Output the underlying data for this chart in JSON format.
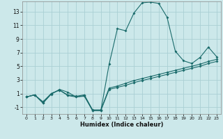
{
  "xlabel": "Humidex (Indice chaleur)",
  "bg_color": "#cce8ea",
  "grid_color": "#aad0d4",
  "line_color": "#1a6b6b",
  "xlim": [
    -0.5,
    23.5
  ],
  "ylim": [
    -2.0,
    14.5
  ],
  "xticks": [
    0,
    1,
    2,
    3,
    4,
    5,
    6,
    7,
    8,
    9,
    10,
    11,
    12,
    13,
    14,
    15,
    16,
    17,
    18,
    19,
    20,
    21,
    22,
    23
  ],
  "yticks": [
    -1,
    1,
    3,
    5,
    7,
    9,
    11,
    13
  ],
  "curve1_x": [
    0,
    1,
    2,
    3,
    4,
    5,
    6,
    7,
    8,
    9,
    10,
    11,
    12,
    13,
    14,
    15,
    16,
    17,
    18,
    19,
    20,
    21,
    22,
    23
  ],
  "curve1_y": [
    0.5,
    0.8,
    -0.4,
    0.9,
    1.6,
    1.2,
    0.5,
    0.6,
    -1.5,
    -1.5,
    5.3,
    10.5,
    10.2,
    12.8,
    14.3,
    14.4,
    14.2,
    12.2,
    7.2,
    5.8,
    5.4,
    6.3,
    7.8,
    6.4
  ],
  "curve2_x": [
    0,
    1,
    2,
    3,
    4,
    5,
    6,
    7,
    8,
    9,
    10,
    11,
    12,
    13,
    14,
    15,
    16,
    17,
    18,
    19,
    20,
    21,
    22,
    23
  ],
  "curve2_y": [
    0.5,
    0.8,
    -0.4,
    1.0,
    1.5,
    0.7,
    0.5,
    0.7,
    -1.5,
    -1.5,
    1.6,
    1.9,
    2.2,
    2.6,
    2.9,
    3.2,
    3.5,
    3.8,
    4.1,
    4.4,
    4.7,
    5.0,
    5.4,
    5.7
  ],
  "curve3_x": [
    0,
    1,
    2,
    3,
    4,
    5,
    6,
    7,
    8,
    9,
    10,
    11,
    12,
    13,
    14,
    15,
    16,
    17,
    18,
    19,
    20,
    21,
    22,
    23
  ],
  "curve3_y": [
    0.5,
    0.8,
    -0.2,
    1.0,
    1.5,
    0.8,
    0.6,
    0.8,
    -1.4,
    -1.4,
    1.8,
    2.1,
    2.5,
    2.9,
    3.2,
    3.5,
    3.8,
    4.1,
    4.4,
    4.7,
    5.0,
    5.3,
    5.7,
    6.0
  ]
}
